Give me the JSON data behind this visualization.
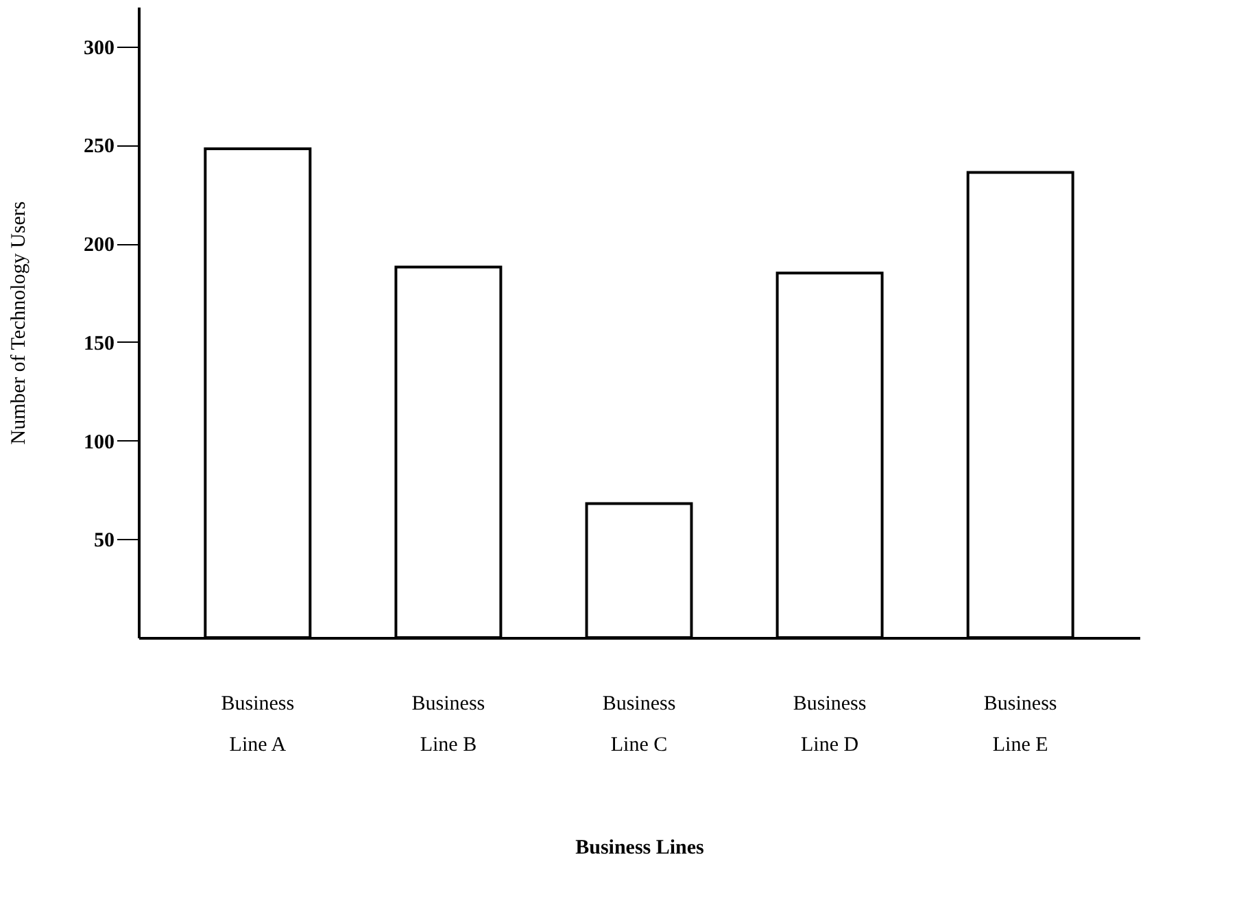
{
  "chart_data": {
    "type": "bar",
    "xlabel": "Business Lines",
    "ylabel": "Number of Technology Users",
    "categories": [
      "Business Line A",
      "Business Line B",
      "Business Line C",
      "Business Line D",
      "Business Line E"
    ],
    "values": [
      248,
      188,
      68,
      185,
      236
    ],
    "color": "#ffffff",
    "ylim": [
      0,
      320
    ],
    "yticks": [
      50,
      100,
      150,
      200,
      250,
      300
    ],
    "grid": false
  }
}
